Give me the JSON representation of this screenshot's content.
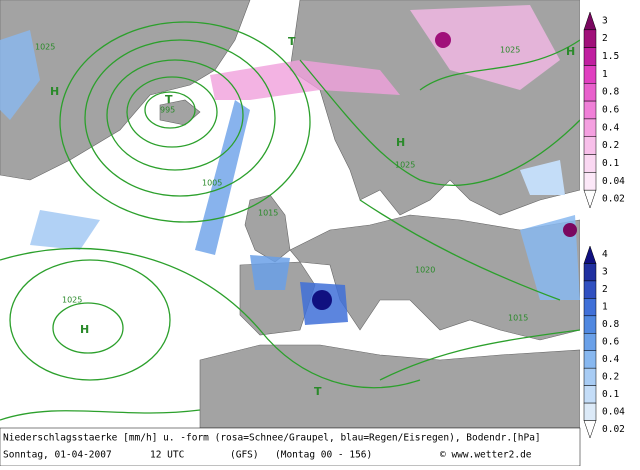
{
  "map": {
    "labels": [
      "1025",
      "995",
      "1005",
      "1015",
      "1025",
      "1025",
      "1025",
      "1015",
      "1020",
      "H",
      "H",
      "H",
      "H",
      "T",
      "T",
      "T"
    ]
  },
  "legend_snow": {
    "entries": [
      {
        "value": 3,
        "color": "#7a0860"
      },
      {
        "value": 2,
        "color": "#a0107a"
      },
      {
        "value": 1.5,
        "color": "#c020a0"
      },
      {
        "value": 1,
        "color": "#e040c0"
      },
      {
        "value": 0.8,
        "color": "#e860cc"
      },
      {
        "value": 0.6,
        "color": "#f080d8"
      },
      {
        "value": 0.4,
        "color": "#f4a0e0"
      },
      {
        "value": 0.2,
        "color": "#f8c0ea"
      },
      {
        "value": 0.1,
        "color": "#fad8f2"
      },
      {
        "value": 0.04,
        "color": "#fce8f8"
      },
      {
        "value": 0.02,
        "color": "#ffffff"
      }
    ]
  },
  "legend_rain": {
    "entries": [
      {
        "value": 4,
        "color": "#101080"
      },
      {
        "value": 3,
        "color": "#2030a0"
      },
      {
        "value": 2,
        "color": "#3050c0"
      },
      {
        "value": 1,
        "color": "#4070d8"
      },
      {
        "value": 0.8,
        "color": "#5088e0"
      },
      {
        "value": 0.6,
        "color": "#6aa0e8"
      },
      {
        "value": 0.4,
        "color": "#88b8f0"
      },
      {
        "value": 0.2,
        "color": "#a8ccf4"
      },
      {
        "value": 0.1,
        "color": "#c4ddf8"
      },
      {
        "value": 0.04,
        "color": "#dceaf8"
      },
      {
        "value": 0.02,
        "color": "#ffffff"
      }
    ]
  },
  "caption": {
    "line1": "Niederschlagsstaerke [mm/h] u. -form (rosa=Schnee/Graupel, blau=Regen/Eisregen), Bodendr.[hPa]",
    "date": "Sonntag, 01-04-2007",
    "time": "12 UTC",
    "model": "(GFS)",
    "run": "(Montag 00 - 156)",
    "credit": "© www.wetter2.de"
  }
}
